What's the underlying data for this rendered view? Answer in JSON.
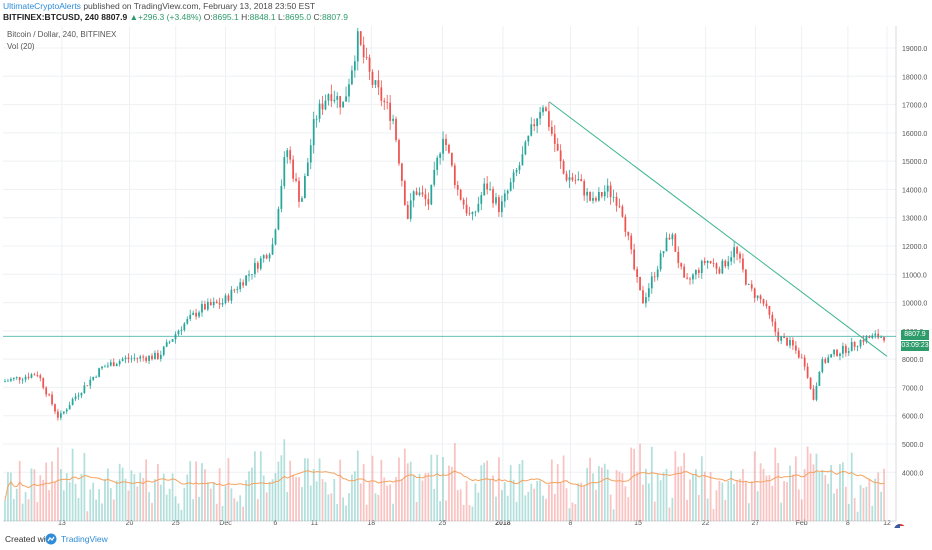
{
  "header": {
    "author": "UltimateCryptoAlerts",
    "published_text": "published on TradingView.com, February 13, 2018 23:50 EST",
    "symbol": "BITFINEX:BTCUSD, 240",
    "last": "8807.9",
    "change": "+296.3 (+3.48%)",
    "open_label": "O:",
    "open": "8695.1",
    "high_label": "H:",
    "high": "8848.1",
    "low_label": "L:",
    "low": "8695.0",
    "close_label": "C:",
    "close": "8807.9"
  },
  "legend": {
    "title": "Bitcoin / Dollar, 240, BITFINEX",
    "volume": "Vol (20)"
  },
  "price_tags": {
    "last_price": "8807.9",
    "countdown": "03:09:23"
  },
  "footer": {
    "created_with": "Created with",
    "brand": "TradingView"
  },
  "colors": {
    "up": "#26a69a",
    "down": "#ef5350",
    "volume_ma": "#f5a25d",
    "trendline": "#3fb591",
    "grid": "#eef0f3",
    "axis_text": "#555555"
  },
  "chart_data": {
    "type": "candlestick",
    "title": "Bitcoin / Dollar, 240, BITFINEX",
    "interval": "240",
    "x_ticks": [
      "13",
      "20",
      "25",
      "Dec",
      "6",
      "11",
      "18",
      "25",
      "2018",
      "8",
      "15",
      "22",
      "27",
      "Feb",
      "8",
      "12"
    ],
    "y_ticks": [
      4000,
      5000,
      6000,
      7000,
      8000,
      9000,
      10000,
      11000,
      12000,
      13000,
      14000,
      15000,
      16000,
      17000,
      18000,
      19000
    ],
    "ylim": [
      3500,
      20000
    ],
    "price_anchors": [
      {
        "d": 0,
        "p": 7200
      },
      {
        "d": 5,
        "p": 7500
      },
      {
        "d": 8,
        "p": 5900
      },
      {
        "d": 10,
        "p": 6600
      },
      {
        "d": 14,
        "p": 7700
      },
      {
        "d": 17,
        "p": 8000
      },
      {
        "d": 22,
        "p": 8100
      },
      {
        "d": 25,
        "p": 9100
      },
      {
        "d": 28,
        "p": 9800
      },
      {
        "d": 31,
        "p": 10000
      },
      {
        "d": 35,
        "p": 11100
      },
      {
        "d": 38,
        "p": 12000
      },
      {
        "d": 40,
        "p": 15500
      },
      {
        "d": 42,
        "p": 13500
      },
      {
        "d": 44,
        "p": 16500
      },
      {
        "d": 46,
        "p": 17500
      },
      {
        "d": 48,
        "p": 17000
      },
      {
        "d": 50,
        "p": 19300
      },
      {
        "d": 52,
        "p": 17800
      },
      {
        "d": 55,
        "p": 16500
      },
      {
        "d": 57,
        "p": 13000
      },
      {
        "d": 58,
        "p": 14000
      },
      {
        "d": 60,
        "p": 13500
      },
      {
        "d": 62,
        "p": 16000
      },
      {
        "d": 64,
        "p": 14000
      },
      {
        "d": 66,
        "p": 12900
      },
      {
        "d": 68,
        "p": 14200
      },
      {
        "d": 70,
        "p": 13300
      },
      {
        "d": 73,
        "p": 15000
      },
      {
        "d": 75,
        "p": 16500
      },
      {
        "d": 76,
        "p": 17100
      },
      {
        "d": 79,
        "p": 14500
      },
      {
        "d": 81,
        "p": 14300
      },
      {
        "d": 83,
        "p": 13500
      },
      {
        "d": 85,
        "p": 14000
      },
      {
        "d": 87,
        "p": 13500
      },
      {
        "d": 89,
        "p": 11000
      },
      {
        "d": 90,
        "p": 10000
      },
      {
        "d": 92,
        "p": 11200
      },
      {
        "d": 94,
        "p": 12500
      },
      {
        "d": 96,
        "p": 10600
      },
      {
        "d": 99,
        "p": 11500
      },
      {
        "d": 101,
        "p": 11200
      },
      {
        "d": 103,
        "p": 11900
      },
      {
        "d": 105,
        "p": 10500
      },
      {
        "d": 107,
        "p": 10000
      },
      {
        "d": 109,
        "p": 8800
      },
      {
        "d": 111,
        "p": 8500
      },
      {
        "d": 113,
        "p": 7800
      },
      {
        "d": 114,
        "p": 6500
      },
      {
        "d": 115,
        "p": 7800
      },
      {
        "d": 117,
        "p": 8200
      },
      {
        "d": 119,
        "p": 8400
      },
      {
        "d": 121,
        "p": 8700
      },
      {
        "d": 123,
        "p": 8807.9
      }
    ],
    "trendline": [
      {
        "d": 76.5,
        "p": 17100
      },
      {
        "d": 124,
        "p": 8100
      }
    ],
    "horizontal_line": 8807.9
  }
}
